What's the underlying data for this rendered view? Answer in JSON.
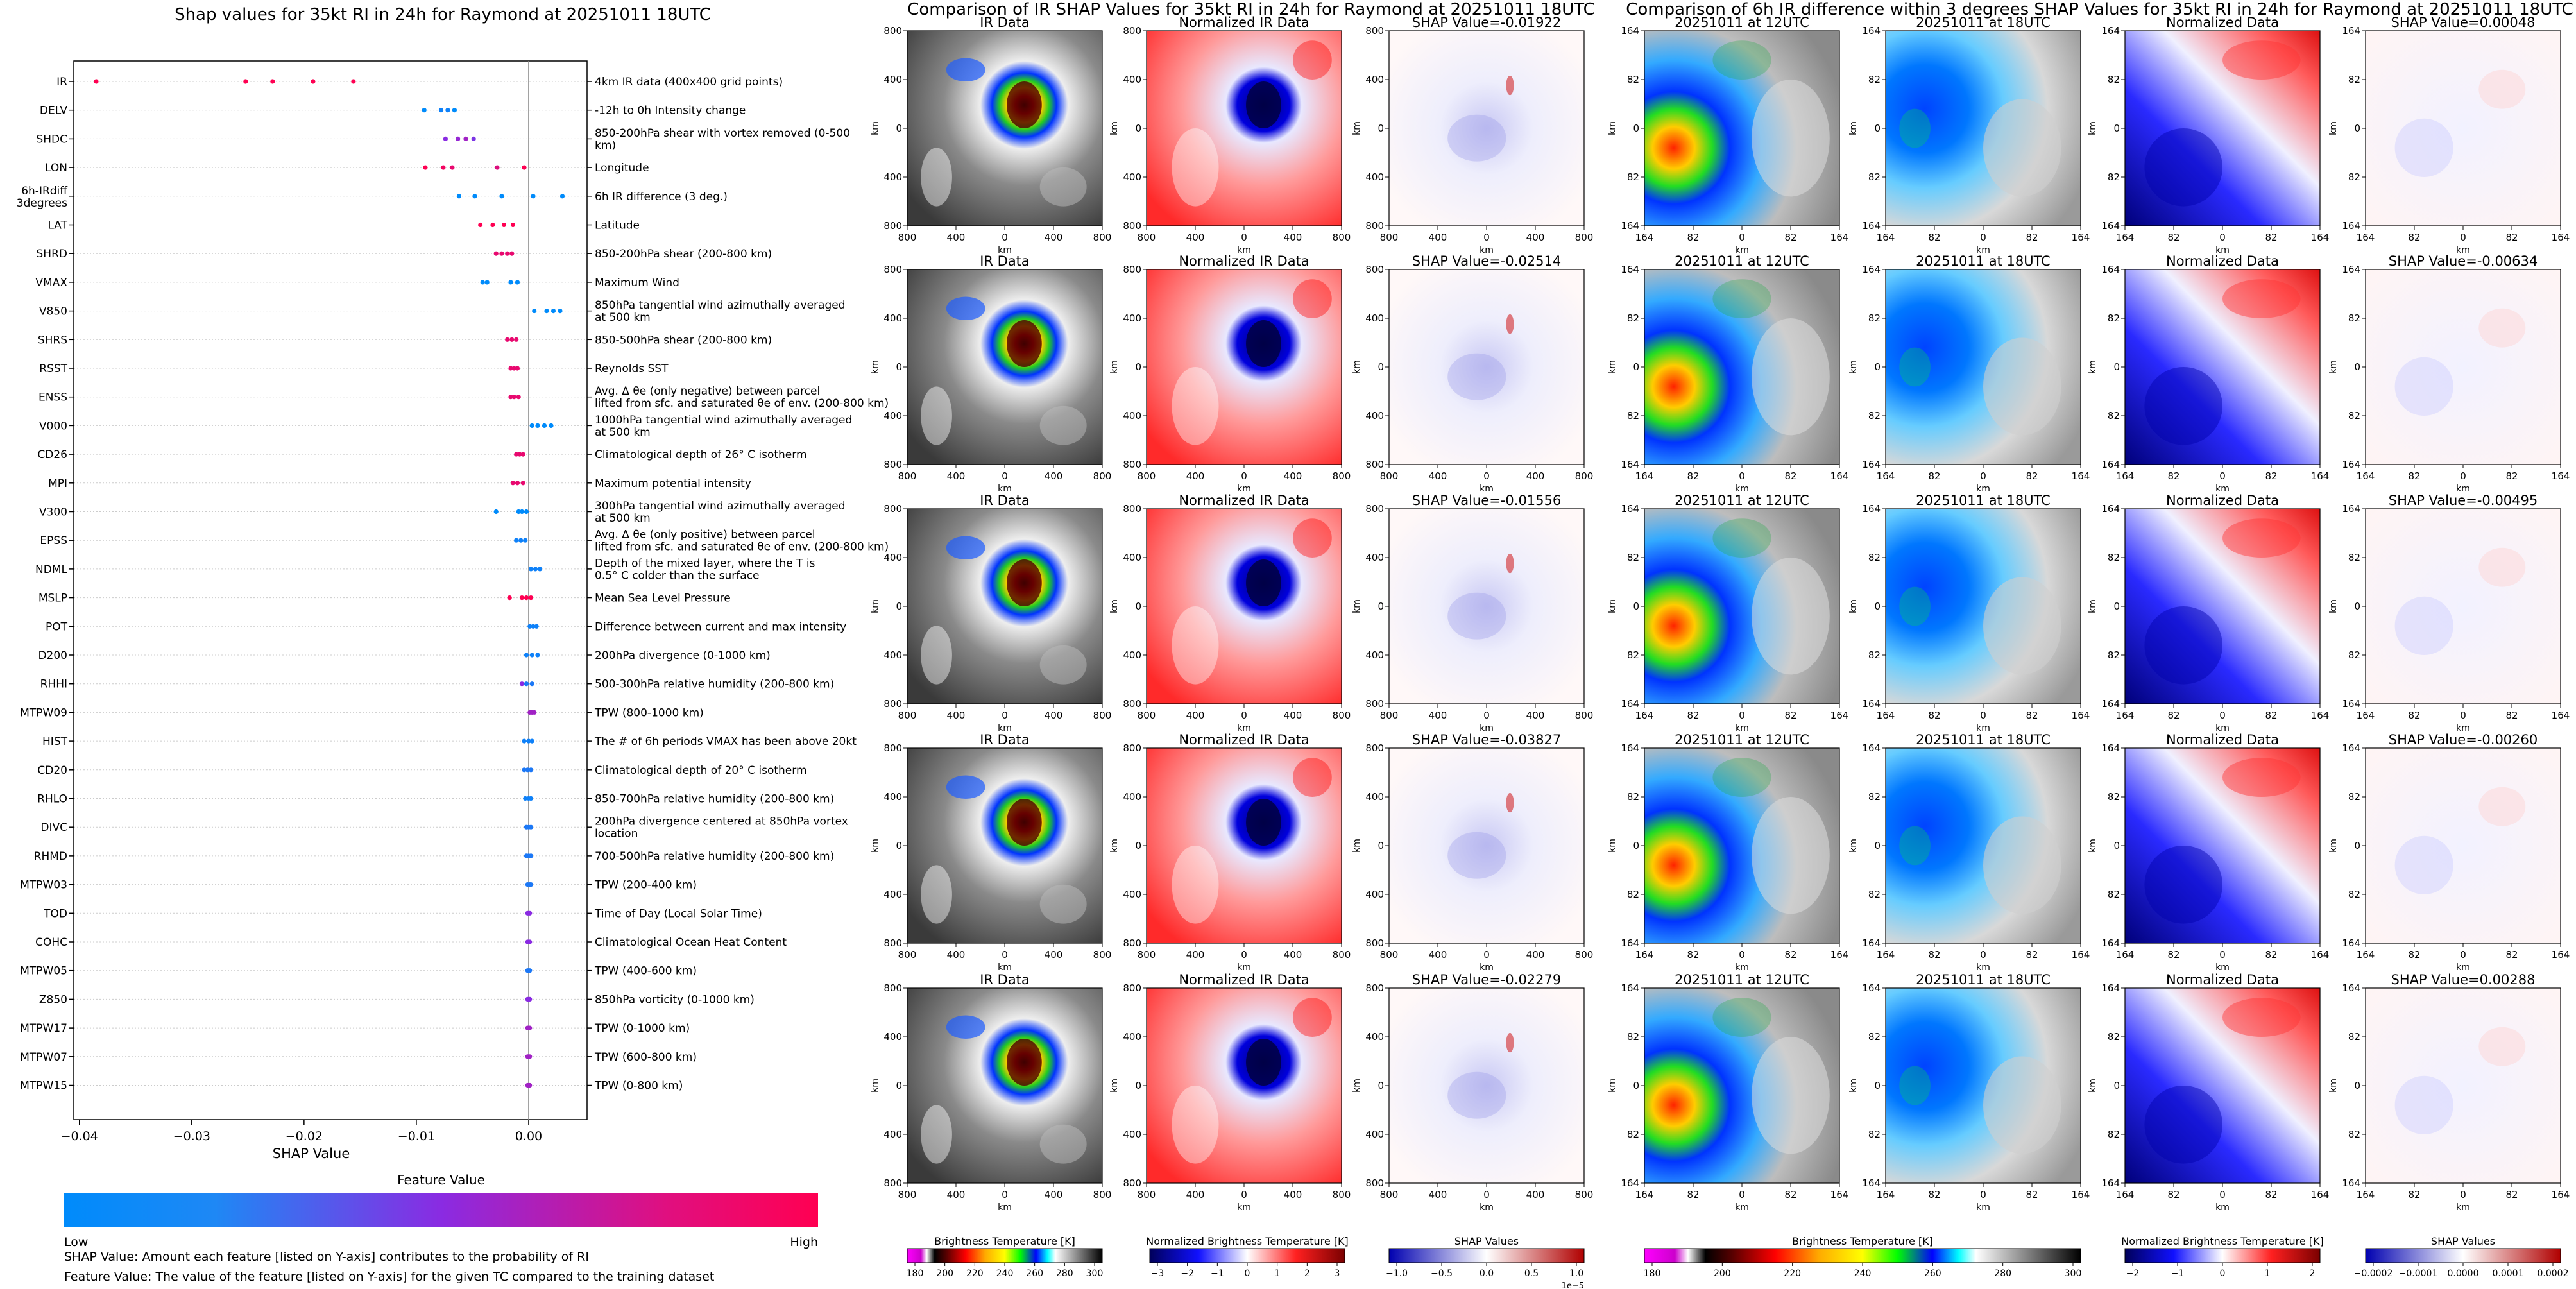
{
  "chart_data": [
    {
      "type": "scatter",
      "title": "Shap values for 35kt RI in 24h for Raymond at 20251011 18UTC",
      "xlabel": "SHAP Value",
      "xlim": [
        -0.0405,
        0.0052
      ],
      "xticks": [
        {
          "value": -0.04,
          "label": "−0.04"
        },
        {
          "value": -0.03,
          "label": "−0.03"
        },
        {
          "value": -0.02,
          "label": "−0.02"
        },
        {
          "value": -0.01,
          "label": "−0.01"
        },
        {
          "value": 0.0,
          "label": "0.00"
        }
      ],
      "colorbar_title": "Feature Value",
      "colorbar_low": "Low",
      "colorbar_high": "High",
      "features": [
        {
          "name": "IR",
          "desc": "4km IR data (400x400 grid points)",
          "points": [
            [
              -0.0385,
              1
            ],
            [
              -0.0252,
              1
            ],
            [
              -0.0228,
              1
            ],
            [
              -0.0192,
              1
            ],
            [
              -0.0156,
              1
            ]
          ]
        },
        {
          "name": "DELV",
          "desc": "-12h to 0h Intensity change",
          "points": [
            [
              -0.0093,
              0
            ],
            [
              -0.0078,
              0.05
            ],
            [
              -0.0072,
              0.05
            ],
            [
              -0.0066,
              0
            ]
          ]
        },
        {
          "name": "SHDC",
          "desc": "850-200hPa shear with vortex removed (0-500 km)",
          "points": [
            [
              -0.0074,
              0.5
            ],
            [
              -0.0063,
              0.55
            ],
            [
              -0.0056,
              0.6
            ],
            [
              -0.0049,
              0.45
            ]
          ]
        },
        {
          "name": "LON",
          "desc": "Longitude",
          "points": [
            [
              -0.0092,
              1
            ],
            [
              -0.0076,
              0.95
            ],
            [
              -0.0068,
              0.9
            ],
            [
              -0.0028,
              0.85
            ],
            [
              -0.0004,
              1
            ]
          ]
        },
        {
          "name": "6h-IRdiff 3degrees",
          "desc": "6h IR difference (3 deg.)",
          "points": [
            [
              -0.0062,
              0
            ],
            [
              -0.0048,
              0
            ],
            [
              -0.0024,
              0
            ],
            [
              0.0004,
              0
            ],
            [
              0.003,
              0
            ]
          ]
        },
        {
          "name": "LAT",
          "desc": "Latitude",
          "points": [
            [
              -0.0043,
              1
            ],
            [
              -0.0032,
              1
            ],
            [
              -0.0022,
              1
            ],
            [
              -0.0014,
              1
            ]
          ]
        },
        {
          "name": "SHRD",
          "desc": "850-200hPa shear (200-800 km)",
          "points": [
            [
              -0.0029,
              0.9
            ],
            [
              -0.0024,
              0.9
            ],
            [
              -0.0019,
              0.9
            ],
            [
              -0.0015,
              0.9
            ]
          ]
        },
        {
          "name": "VMAX",
          "desc": "Maximum Wind",
          "points": [
            [
              -0.0041,
              0
            ],
            [
              -0.0037,
              0
            ],
            [
              -0.0016,
              0
            ],
            [
              -0.001,
              0
            ]
          ]
        },
        {
          "name": "V850",
          "desc": "850hPa tangential wind azimuthally averaged at 500 km",
          "points": [
            [
              0.0005,
              0
            ],
            [
              0.0016,
              0
            ],
            [
              0.0022,
              0
            ],
            [
              0.0028,
              0
            ]
          ]
        },
        {
          "name": "SHRS",
          "desc": "850-500hPa shear (200-800 km)",
          "points": [
            [
              -0.0019,
              0.9
            ],
            [
              -0.0015,
              0.9
            ],
            [
              -0.0011,
              0.9
            ]
          ]
        },
        {
          "name": "RSST",
          "desc": "Reynolds SST",
          "points": [
            [
              -0.0016,
              0.9
            ],
            [
              -0.0013,
              0.9
            ],
            [
              -0.001,
              0.9
            ]
          ]
        },
        {
          "name": "ENSS",
          "desc": "Avg. Δ θe (only negative) between parcel lifted from sfc. and saturated θe of env. (200-800 km)",
          "points": [
            [
              -0.0016,
              0.9
            ],
            [
              -0.0013,
              0.9
            ],
            [
              -0.0009,
              0.9
            ]
          ]
        },
        {
          "name": "V000",
          "desc": "1000hPa tangential wind azimuthally averaged at 500 km",
          "points": [
            [
              0.0003,
              0
            ],
            [
              0.0008,
              0
            ],
            [
              0.0014,
              0
            ],
            [
              0.002,
              0
            ]
          ]
        },
        {
          "name": "CD26",
          "desc": "Climatological depth of 26° C isotherm",
          "points": [
            [
              -0.0011,
              0.9
            ],
            [
              -0.0008,
              0.9
            ],
            [
              -0.0005,
              0.9
            ]
          ]
        },
        {
          "name": "MPI",
          "desc": "Maximum potential intensity",
          "points": [
            [
              -0.0014,
              0.9
            ],
            [
              -0.001,
              0.9
            ],
            [
              -0.0005,
              0.9
            ]
          ]
        },
        {
          "name": "V300",
          "desc": "300hPa tangential wind azimuthally averaged at 500 km",
          "points": [
            [
              -0.0029,
              0
            ],
            [
              -0.0009,
              0
            ],
            [
              -0.0006,
              0
            ],
            [
              -0.0002,
              0
            ]
          ]
        },
        {
          "name": "EPSS",
          "desc": "Avg. Δ θe (only positive) between parcel lifted from sfc. and saturated θe of env. (200-800 km)",
          "points": [
            [
              -0.0011,
              0.05
            ],
            [
              -0.0007,
              0.05
            ],
            [
              -0.0003,
              0.05
            ]
          ]
        },
        {
          "name": "NDML",
          "desc": "Depth of the mixed layer, where the T is 0.5° C colder than the surface",
          "points": [
            [
              0.0002,
              0.05
            ],
            [
              0.0006,
              0.05
            ],
            [
              0.001,
              0.05
            ]
          ]
        },
        {
          "name": "MSLP",
          "desc": "Mean Sea Level Pressure",
          "points": [
            [
              -0.0017,
              1
            ],
            [
              -0.0006,
              1
            ],
            [
              -0.0002,
              1
            ],
            [
              0.0002,
              1
            ]
          ]
        },
        {
          "name": "POT",
          "desc": "Difference between current and max intensity",
          "points": [
            [
              0.0001,
              0.05
            ],
            [
              0.0004,
              0.05
            ],
            [
              0.0007,
              0.05
            ]
          ]
        },
        {
          "name": "D200",
          "desc": "200hPa divergence (0-1000 km)",
          "points": [
            [
              -0.0002,
              0.05
            ],
            [
              0.0003,
              0.05
            ],
            [
              0.0008,
              0.05
            ]
          ]
        },
        {
          "name": "RHHI",
          "desc": "500-300hPa relative humidity (200-800 km)",
          "points": [
            [
              -0.0006,
              0.5
            ],
            [
              -0.0002,
              0.1
            ],
            [
              0.0003,
              0.1
            ]
          ]
        },
        {
          "name": "MTPW09",
          "desc": "TPW (800-1000 km)",
          "points": [
            [
              0.0001,
              0.6
            ],
            [
              0.0003,
              0.6
            ],
            [
              0.0005,
              0.6
            ]
          ]
        },
        {
          "name": "HIST",
          "desc": "The # of 6h periods VMAX has been above 20kt",
          "points": [
            [
              -0.0004,
              0.05
            ],
            [
              0.0,
              0.05
            ],
            [
              0.0003,
              0.05
            ]
          ]
        },
        {
          "name": "CD20",
          "desc": "Climatological depth of 20° C isotherm",
          "points": [
            [
              -0.0004,
              0.1
            ],
            [
              -0.0001,
              0.1
            ],
            [
              0.0002,
              0.1
            ]
          ]
        },
        {
          "name": "RHLO",
          "desc": "850-700hPa relative humidity (200-800 km)",
          "points": [
            [
              -0.0003,
              0.05
            ],
            [
              0.0,
              0.05
            ],
            [
              0.0002,
              0.05
            ]
          ]
        },
        {
          "name": "DIVC",
          "desc": "200hPa divergence centered at 850hPa vortex location",
          "points": [
            [
              -0.0002,
              0.1
            ],
            [
              0.0,
              0.1
            ],
            [
              0.0002,
              0.1
            ]
          ]
        },
        {
          "name": "RHMD",
          "desc": "700-500hPa relative humidity (200-800 km)",
          "points": [
            [
              -0.0002,
              0.1
            ],
            [
              0.0,
              0.1
            ],
            [
              0.0002,
              0.1
            ]
          ]
        },
        {
          "name": "MTPW03",
          "desc": "TPW (200-400 km)",
          "points": [
            [
              -0.0001,
              0.1
            ],
            [
              0.0001,
              0.1
            ],
            [
              0.0002,
              0.1
            ]
          ]
        },
        {
          "name": "TOD",
          "desc": "Time of Day (Local Solar Time)",
          "points": [
            [
              -0.0001,
              0.5
            ],
            [
              0.0,
              0.5
            ],
            [
              0.0001,
              0.5
            ]
          ]
        },
        {
          "name": "COHC",
          "desc": "Climatological Ocean Heat Content",
          "points": [
            [
              -0.0001,
              0.5
            ],
            [
              0.0,
              0.5
            ],
            [
              0.0001,
              0.5
            ]
          ]
        },
        {
          "name": "MTPW05",
          "desc": "TPW (400-600 km)",
          "points": [
            [
              -0.0001,
              0.1
            ],
            [
              0.0,
              0.1
            ],
            [
              0.0001,
              0.1
            ]
          ]
        },
        {
          "name": "Z850",
          "desc": "850hPa vorticity (0-1000 km)",
          "points": [
            [
              -0.0001,
              0.5
            ],
            [
              0.0,
              0.5
            ],
            [
              0.0001,
              0.5
            ]
          ]
        },
        {
          "name": "MTPW17",
          "desc": "TPW (0-1000 km)",
          "points": [
            [
              -0.0001,
              0.6
            ],
            [
              0.0,
              0.6
            ],
            [
              0.0001,
              0.6
            ]
          ]
        },
        {
          "name": "MTPW07",
          "desc": "TPW (600-800 km)",
          "points": [
            [
              -0.0001,
              0.6
            ],
            [
              0.0,
              0.6
            ],
            [
              0.0001,
              0.6
            ]
          ]
        },
        {
          "name": "MTPW15",
          "desc": "TPW (0-800 km)",
          "points": [
            [
              -0.0001,
              0.6
            ],
            [
              0.0,
              0.6
            ],
            [
              0.0001,
              0.6
            ]
          ]
        }
      ]
    },
    {
      "type": "heatmap",
      "title": "Comparison of IR SHAP Values for 35kt RI in 24h for Raymond at 20251011 18UTC",
      "columns": [
        "IR Data",
        "Normalized IR Data"
      ],
      "shap_titles": [
        "SHAP Value=-0.01922",
        "SHAP Value=-0.02514",
        "SHAP Value=-0.01556",
        "SHAP Value=-0.03827",
        "SHAP Value=-0.02279"
      ],
      "axis_unit": "km",
      "xticks": [
        "800",
        "400",
        "0",
        "400",
        "800"
      ],
      "yticks": [
        "800",
        "400",
        "0",
        "400",
        "800"
      ],
      "colorbars": [
        {
          "label": "Brightness Temperature [K]",
          "ticks": [
            "180",
            "200",
            "220",
            "240",
            "260",
            "280",
            "300"
          ]
        },
        {
          "label": "Normalized Brightness Temperature [K]",
          "ticks": [
            "−3",
            "−2",
            "−1",
            "0",
            "1",
            "2",
            "3"
          ]
        },
        {
          "label": "SHAP Values",
          "ticks": [
            "−1.0",
            "−0.5",
            "0.0",
            "0.5",
            "1.0"
          ],
          "offset": "1e−5"
        }
      ]
    },
    {
      "type": "heatmap",
      "title": "Comparison of 6h IR difference within 3 degrees SHAP Values for 35kt RI in 24h for Raymond at 20251011 18UTC",
      "columns": [
        "20251011 at 12UTC",
        "20251011 at 18UTC",
        "Normalized Data"
      ],
      "shap_titles": [
        "SHAP Value=0.00048",
        "SHAP Value=-0.00634",
        "SHAP Value=-0.00495",
        "SHAP Value=-0.00260",
        "SHAP Value=0.00288"
      ],
      "axis_unit": "km",
      "xticks": [
        "164",
        "82",
        "0",
        "82",
        "164"
      ],
      "yticks": [
        "164",
        "82",
        "0",
        "82",
        "164"
      ],
      "colorbars": [
        {
          "label": "Brightness Temperature [K]",
          "ticks": [
            "180",
            "200",
            "220",
            "240",
            "260",
            "280",
            "300"
          ]
        },
        {
          "label": "Normalized Brightness Temperature [K]",
          "ticks": [
            "−2",
            "−1",
            "0",
            "1",
            "2"
          ]
        },
        {
          "label": "SHAP Values",
          "ticks": [
            "−0.0002",
            "−0.0001",
            "0.0000",
            "0.0001",
            "0.0002"
          ]
        }
      ]
    }
  ],
  "notes": {
    "shap": "SHAP Value: Amount each feature [listed on Y-axis] contributes to the probability of RI",
    "feature": "Feature Value: The value of the feature [listed on Y-axis] for the given TC compared to the training dataset"
  },
  "colors": {
    "low": "#008bfb",
    "high": "#ff0052",
    "mid": "#8a2be2"
  }
}
